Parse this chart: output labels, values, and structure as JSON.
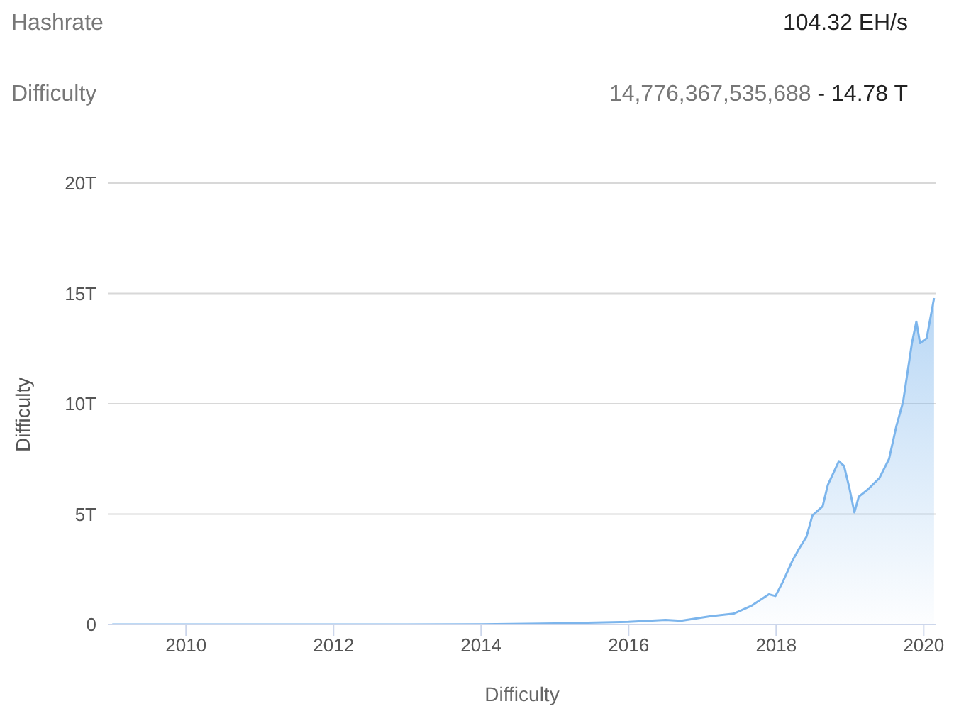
{
  "chart_data": {
    "type": "area",
    "annotations": [
      "Hashrate",
      "104.32 EH/s",
      "Difficulty",
      "14,776,367,535,688",
      "- 14.78 T"
    ],
    "xlabel": "Difficulty",
    "ylabel": "Difficulty",
    "x": [
      2009,
      2010,
      2011,
      2012,
      2013,
      2014,
      2015,
      2016,
      2016.5,
      2016.71,
      2017.1,
      2017.42,
      2017.67,
      2017.9,
      2017.99,
      2018.09,
      2018.22,
      2018.31,
      2018.41,
      2018.49,
      2018.63,
      2018.7,
      2018.85,
      2018.92,
      2018.99,
      2019.06,
      2019.12,
      2019.24,
      2019.4,
      2019.53,
      2019.63,
      2019.72,
      2019.84,
      2019.9,
      2019.95,
      2020.04,
      2020.14
    ],
    "series": [
      {
        "color": "#7cb5ec",
        "values": [
          0,
          0,
          0,
          0,
          0,
          0.01,
          0.05,
          0.12,
          0.21,
          0.17,
          0.37,
          0.49,
          0.86,
          1.37,
          1.29,
          1.93,
          2.89,
          3.43,
          3.97,
          4.93,
          5.36,
          6.32,
          7.4,
          7.18,
          6.22,
          5.08,
          5.79,
          6.11,
          6.64,
          7.5,
          9.0,
          10.08,
          12.75,
          13.72,
          12.75,
          12.97,
          14.79
        ]
      }
    ],
    "xlim": [
      2008.94,
      2020.17
    ],
    "xticks": [
      2010,
      2012,
      2014,
      2016,
      2018,
      2020
    ],
    "ylim": [
      0,
      20
    ],
    "yticks": [
      0,
      {
        "value": 5,
        "label": "5T"
      },
      {
        "value": 10,
        "label": "10T"
      },
      {
        "value": 15,
        "label": "15T"
      },
      {
        "value": 20,
        "label": "20T"
      }
    ],
    "grid": "y",
    "legend": false
  }
}
